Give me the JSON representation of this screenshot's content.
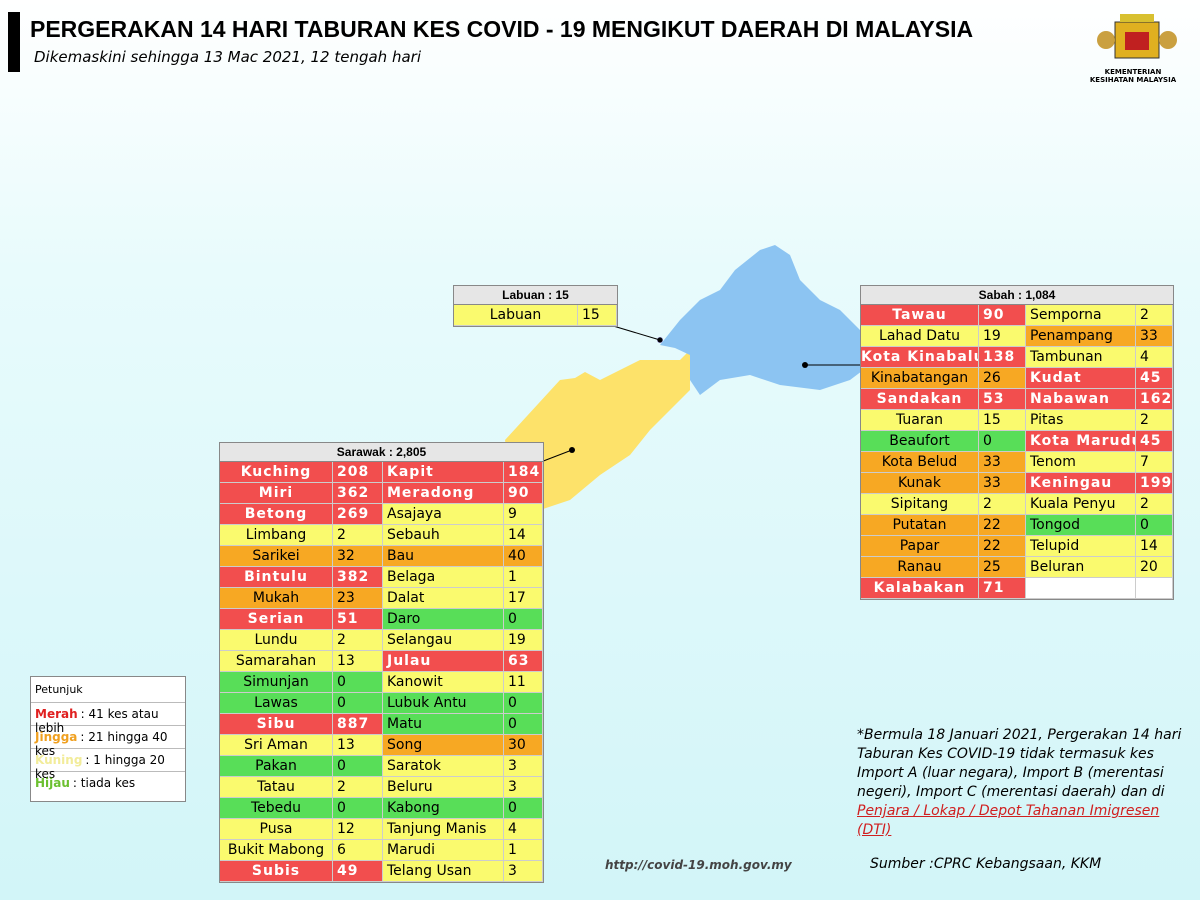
{
  "header": {
    "title": "PERGERAKAN 14 HARI TABURAN KES COVID - 19 MENGIKUT DAERAH DI MALAYSIA",
    "subtitle": "Dikemaskini sehingga 13 Mac 2021, 12 tengah hari",
    "logo_text": "KEMENTERIAN KESIHATAN MALAYSIA"
  },
  "labuan": {
    "title": "Labuan : 15",
    "districts": [
      {
        "name": "Labuan",
        "cases": 15,
        "color": "#fafa6e"
      }
    ]
  },
  "sabah": {
    "title": "Sabah : 1,084",
    "districts": [
      {
        "name": "Tawau",
        "cases": 90,
        "color": "#f24e4e"
      },
      {
        "name": "Semporna",
        "cases": 2,
        "color": "#fafa6e"
      },
      {
        "name": "Lahad Datu",
        "cases": 19,
        "color": "#fafa6e"
      },
      {
        "name": "Penampang",
        "cases": 33,
        "color": "#f7a823"
      },
      {
        "name": "Kota Kinabalu",
        "cases": 138,
        "color": "#f24e4e"
      },
      {
        "name": "Tambunan",
        "cases": 4,
        "color": "#fafa6e"
      },
      {
        "name": "Kinabatangan",
        "cases": 26,
        "color": "#f7a823"
      },
      {
        "name": "Kudat",
        "cases": 45,
        "color": "#f24e4e"
      },
      {
        "name": "Sandakan",
        "cases": 53,
        "color": "#f24e4e"
      },
      {
        "name": "Nabawan",
        "cases": 162,
        "color": "#f24e4e"
      },
      {
        "name": "Tuaran",
        "cases": 15,
        "color": "#fafa6e"
      },
      {
        "name": "Pitas",
        "cases": 2,
        "color": "#fafa6e"
      },
      {
        "name": "Beaufort",
        "cases": 0,
        "color": "#58de58"
      },
      {
        "name": "Kota Marudu",
        "cases": 45,
        "color": "#f24e4e"
      },
      {
        "name": "Kota Belud",
        "cases": 33,
        "color": "#f7a823"
      },
      {
        "name": "Tenom",
        "cases": 7,
        "color": "#fafa6e"
      },
      {
        "name": "Kunak",
        "cases": 33,
        "color": "#f7a823"
      },
      {
        "name": "Keningau",
        "cases": 199,
        "color": "#f24e4e"
      },
      {
        "name": "Sipitang",
        "cases": 2,
        "color": "#fafa6e"
      },
      {
        "name": "Kuala Penyu",
        "cases": 2,
        "color": "#fafa6e"
      },
      {
        "name": "Putatan",
        "cases": 22,
        "color": "#f7a823"
      },
      {
        "name": "Tongod",
        "cases": 0,
        "color": "#58de58"
      },
      {
        "name": "Papar",
        "cases": 22,
        "color": "#f7a823"
      },
      {
        "name": "Telupid",
        "cases": 14,
        "color": "#fafa6e"
      },
      {
        "name": "Ranau",
        "cases": 25,
        "color": "#f7a823"
      },
      {
        "name": "Beluran",
        "cases": 20,
        "color": "#fafa6e"
      },
      {
        "name": "Kalabakan",
        "cases": 71,
        "color": "#f24e4e"
      }
    ]
  },
  "sarawak": {
    "title": "Sarawak : 2,805",
    "districts": [
      {
        "name": "Kuching",
        "cases": 208,
        "color": "#f24e4e"
      },
      {
        "name": "Kapit",
        "cases": 184,
        "color": "#f24e4e"
      },
      {
        "name": "Miri",
        "cases": 362,
        "color": "#f24e4e"
      },
      {
        "name": "Meradong",
        "cases": 90,
        "color": "#f24e4e"
      },
      {
        "name": "Betong",
        "cases": 269,
        "color": "#f24e4e"
      },
      {
        "name": "Asajaya",
        "cases": 9,
        "color": "#fafa6e"
      },
      {
        "name": "Limbang",
        "cases": 2,
        "color": "#fafa6e"
      },
      {
        "name": "Sebauh",
        "cases": 14,
        "color": "#fafa6e"
      },
      {
        "name": "Sarikei",
        "cases": 32,
        "color": "#f7a823"
      },
      {
        "name": "Bau",
        "cases": 40,
        "color": "#f7a823"
      },
      {
        "name": "Bintulu",
        "cases": 382,
        "color": "#f24e4e"
      },
      {
        "name": "Belaga",
        "cases": 1,
        "color": "#fafa6e"
      },
      {
        "name": "Mukah",
        "cases": 23,
        "color": "#f7a823"
      },
      {
        "name": "Dalat",
        "cases": 17,
        "color": "#fafa6e"
      },
      {
        "name": "Serian",
        "cases": 51,
        "color": "#f24e4e"
      },
      {
        "name": "Daro",
        "cases": 0,
        "color": "#58de58"
      },
      {
        "name": "Lundu",
        "cases": 2,
        "color": "#fafa6e"
      },
      {
        "name": "Selangau",
        "cases": 19,
        "color": "#fafa6e"
      },
      {
        "name": "Samarahan",
        "cases": 13,
        "color": "#fafa6e"
      },
      {
        "name": "Julau",
        "cases": 63,
        "color": "#f24e4e"
      },
      {
        "name": "Simunjan",
        "cases": 0,
        "color": "#58de58"
      },
      {
        "name": "Kanowit",
        "cases": 11,
        "color": "#fafa6e"
      },
      {
        "name": "Lawas",
        "cases": 0,
        "color": "#58de58"
      },
      {
        "name": "Lubuk Antu",
        "cases": 0,
        "color": "#58de58"
      },
      {
        "name": "Sibu",
        "cases": 887,
        "color": "#f24e4e"
      },
      {
        "name": "Matu",
        "cases": 0,
        "color": "#58de58"
      },
      {
        "name": "Sri Aman",
        "cases": 13,
        "color": "#fafa6e"
      },
      {
        "name": "Song",
        "cases": 30,
        "color": "#f7a823"
      },
      {
        "name": "Pakan",
        "cases": 0,
        "color": "#58de58"
      },
      {
        "name": "Saratok",
        "cases": 3,
        "color": "#fafa6e"
      },
      {
        "name": "Tatau",
        "cases": 2,
        "color": "#fafa6e"
      },
      {
        "name": "Beluru",
        "cases": 3,
        "color": "#fafa6e"
      },
      {
        "name": "Tebedu",
        "cases": 0,
        "color": "#58de58"
      },
      {
        "name": "Kabong",
        "cases": 0,
        "color": "#58de58"
      },
      {
        "name": "Pusa",
        "cases": 12,
        "color": "#fafa6e"
      },
      {
        "name": "Tanjung Manis",
        "cases": 4,
        "color": "#fafa6e"
      },
      {
        "name": "Bukit Mabong",
        "cases": 6,
        "color": "#fafa6e"
      },
      {
        "name": "Marudi",
        "cases": 1,
        "color": "#fafa6e"
      },
      {
        "name": "Subis",
        "cases": 49,
        "color": "#f24e4e"
      },
      {
        "name": "Telang Usan",
        "cases": 3,
        "color": "#fafa6e"
      }
    ]
  },
  "legend": {
    "title": "Petunjuk",
    "items": [
      {
        "label": "Merah",
        "text": ": 41 kes atau lebih",
        "color": "#e02020"
      },
      {
        "label": "Jingga",
        "text": ": 21 hingga 40 kes",
        "color": "#f0a020"
      },
      {
        "label": "Kuning",
        "text": ": 1 hingga 20 kes",
        "color": "#f2ec9a"
      },
      {
        "label": "Hijau",
        "text": ": tiada kes",
        "color": "#6cc030"
      }
    ]
  },
  "note": {
    "text": "*Bermula 18 Januari 2021, Pergerakan 14 hari Taburan Kes COVID-19 tidak termasuk kes Import A (luar negara), Import B (merentasi negeri), Import C (merentasi daerah) dan di",
    "link": "Penjara / Lokap / Depot Tahanan Imigresen (DTI)"
  },
  "footer": {
    "url": "http://covid-19.moh.gov.my",
    "source": "Sumber :CPRC Kebangsaan,  KKM"
  }
}
